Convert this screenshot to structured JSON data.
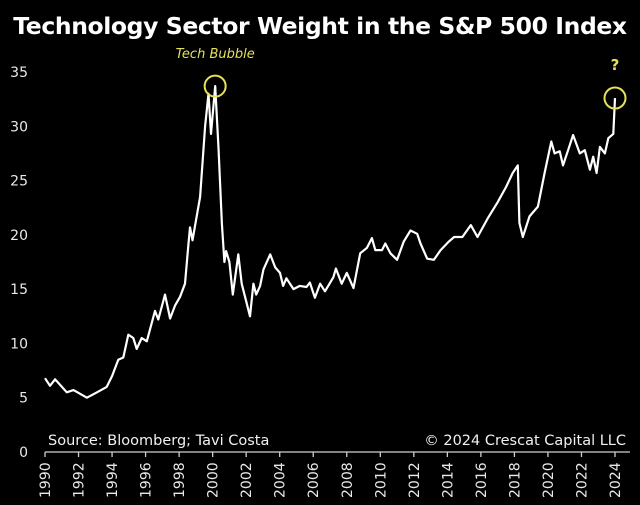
{
  "chart_data": {
    "type": "line",
    "title": "Technology Sector Weight in the S&P 500 Index",
    "xlabel": "",
    "ylabel": "",
    "xlim": [
      1990,
      2024
    ],
    "ylim": [
      0,
      35
    ],
    "grid": false,
    "x_ticks": [
      "1990",
      "1992",
      "1994",
      "1996",
      "1998",
      "2000",
      "2002",
      "2004",
      "2006",
      "2008",
      "2010",
      "2012",
      "2014",
      "2016",
      "2018",
      "2020",
      "2022",
      "2024"
    ],
    "y_ticks": [
      "0",
      "5",
      "10",
      "15",
      "20",
      "25",
      "30",
      "35"
    ],
    "line_color": "#ffffff",
    "annotation_color": "#e4e25a",
    "series": [
      {
        "x": [
          1990.0,
          1990.3,
          1990.6,
          1991.3,
          1991.7,
          1992.5,
          1993.1,
          1993.68,
          1994.0,
          1994.37,
          1994.67,
          1994.97,
          1995.27,
          1995.47,
          1995.77,
          1996.07,
          1996.56,
          1996.76,
          1997.16,
          1997.46,
          1997.76,
          1998.06,
          1998.35,
          1998.55,
          1998.65,
          1998.8,
          1999.25,
          1999.55,
          1999.75,
          1999.9,
          2000.15,
          2000.35,
          2000.55,
          2000.7,
          2000.8,
          2001.0,
          2001.2,
          2001.53,
          2001.73,
          2002.03,
          2002.23,
          2002.43,
          2002.6,
          2002.83,
          2003.03,
          2003.43,
          2003.73,
          2004.02,
          2004.2,
          2004.4,
          2004.82,
          2005.2,
          2005.6,
          2005.8,
          2006.1,
          2006.41,
          2006.7,
          2007.2,
          2007.35,
          2007.7,
          2008.0,
          2008.4,
          2008.8,
          2009.2,
          2009.5,
          2009.7,
          2010.1,
          2010.3,
          2010.6,
          2011.0,
          2011.4,
          2011.8,
          2012.2,
          2012.4,
          2012.8,
          2013.2,
          2013.6,
          2014.1,
          2014.4,
          2014.9,
          2015.4,
          2015.8,
          2016.4,
          2017.0,
          2017.5,
          2017.9,
          2018.2,
          2018.3,
          2018.5,
          2018.9,
          2019.4,
          2019.8,
          2020.2,
          2020.4,
          2020.7,
          2020.9,
          2021.2,
          2021.5,
          2021.9,
          2022.2,
          2022.5,
          2022.7,
          2022.9,
          2023.1,
          2023.4,
          2023.6,
          2023.9,
          2024.0
        ],
        "values": [
          6.8,
          6.1,
          6.7,
          5.5,
          5.7,
          5.0,
          5.5,
          6.0,
          7.0,
          8.5,
          8.7,
          10.8,
          10.5,
          9.5,
          10.5,
          10.2,
          13.0,
          12.2,
          14.5,
          12.3,
          13.5,
          14.3,
          15.5,
          19.0,
          20.7,
          19.5,
          23.5,
          30.0,
          33.0,
          29.3,
          33.7,
          28.0,
          21.0,
          17.5,
          18.5,
          17.5,
          14.5,
          18.2,
          15.5,
          13.7,
          12.5,
          15.5,
          14.5,
          15.3,
          16.8,
          18.2,
          17.0,
          16.5,
          15.3,
          16.0,
          15.0,
          15.3,
          15.2,
          15.6,
          14.2,
          15.5,
          14.8,
          16.1,
          16.9,
          15.5,
          16.5,
          15.1,
          18.3,
          18.8,
          19.7,
          18.6,
          18.6,
          19.2,
          18.3,
          17.7,
          19.4,
          20.4,
          20.1,
          19.2,
          17.8,
          17.7,
          18.6,
          19.4,
          19.8,
          19.8,
          20.9,
          19.8,
          21.5,
          23.0,
          24.4,
          25.7,
          26.4,
          21.1,
          19.8,
          21.7,
          22.6,
          25.7,
          28.6,
          27.5,
          27.7,
          26.4,
          27.8,
          29.2,
          27.5,
          27.8,
          26.0,
          27.2,
          25.7,
          28.1,
          27.5,
          28.9,
          29.3,
          32.6
        ]
      }
    ],
    "annotations": [
      {
        "text": "Tech Bubble",
        "x": 2000.15,
        "y": 33.7
      },
      {
        "text": "?",
        "x": 2024.0,
        "y": 32.6
      }
    ],
    "source": "Source: Bloomberg; Tavi Costa",
    "copyright": "© 2024 Crescat Capital LLC"
  }
}
